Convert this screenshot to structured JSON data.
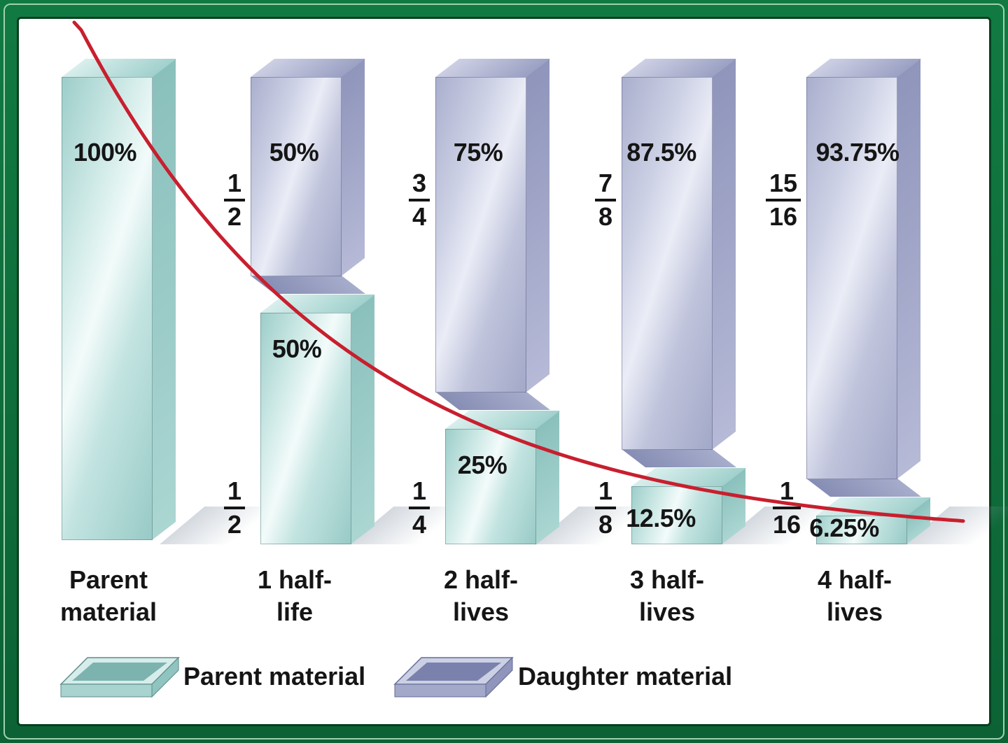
{
  "page": {
    "frame_color": "#0e6f38",
    "frame_highlight_color": "#9ed1b2",
    "background": "#ffffff"
  },
  "chart_data": {
    "type": "bar",
    "subtype": "stacked-3d-radioactive-decay",
    "title": "",
    "categories": [
      "Parent\nmaterial",
      "1 half-\nlife",
      "2 half-\nlives",
      "3 half-\nlives",
      "4 half-\nlives"
    ],
    "series": [
      {
        "name": "Parent material",
        "color": "#bfe2df",
        "values": [
          100,
          50,
          25,
          12.5,
          6.25
        ]
      },
      {
        "name": "Daughter material",
        "color": "#c1c5dd",
        "values": [
          0,
          50,
          75,
          87.5,
          93.75
        ]
      }
    ],
    "groups": [
      {
        "category": "Parent\nmaterial",
        "parent": {
          "percent": 100,
          "label": "100%"
        },
        "daughter": null
      },
      {
        "category": "1 half-\nlife",
        "parent": {
          "percent": 50,
          "label": "50%",
          "fraction": {
            "num": "1",
            "den": "2"
          }
        },
        "daughter": {
          "percent": 50,
          "label": "50%",
          "fraction": {
            "num": "1",
            "den": "2"
          }
        }
      },
      {
        "category": "2 half-\nlives",
        "parent": {
          "percent": 25,
          "label": "25%",
          "fraction": {
            "num": "1",
            "den": "4"
          }
        },
        "daughter": {
          "percent": 75,
          "label": "75%",
          "fraction": {
            "num": "3",
            "den": "4"
          }
        }
      },
      {
        "category": "3 half-\nlives",
        "parent": {
          "percent": 12.5,
          "label": "12.5%",
          "fraction": {
            "num": "1",
            "den": "8"
          }
        },
        "daughter": {
          "percent": 87.5,
          "label": "87.5%",
          "fraction": {
            "num": "7",
            "den": "8"
          }
        }
      },
      {
        "category": "4 half-\nlives",
        "parent": {
          "percent": 6.25,
          "label": "6.25%",
          "fraction": {
            "num": "1",
            "den": "16"
          }
        },
        "daughter": {
          "percent": 93.75,
          "label": "93.75%",
          "fraction": {
            "num": "15",
            "den": "16"
          }
        }
      }
    ],
    "curve": {
      "color": "#c81f2e",
      "description": "exponential decay curve of parent material"
    },
    "legend": [
      {
        "label": "Parent material",
        "color": "#bfe2df"
      },
      {
        "label": "Daughter material",
        "color": "#c1c5dd"
      }
    ],
    "ylim": [
      0,
      100
    ],
    "grid": false,
    "legend_position": "bottom"
  }
}
